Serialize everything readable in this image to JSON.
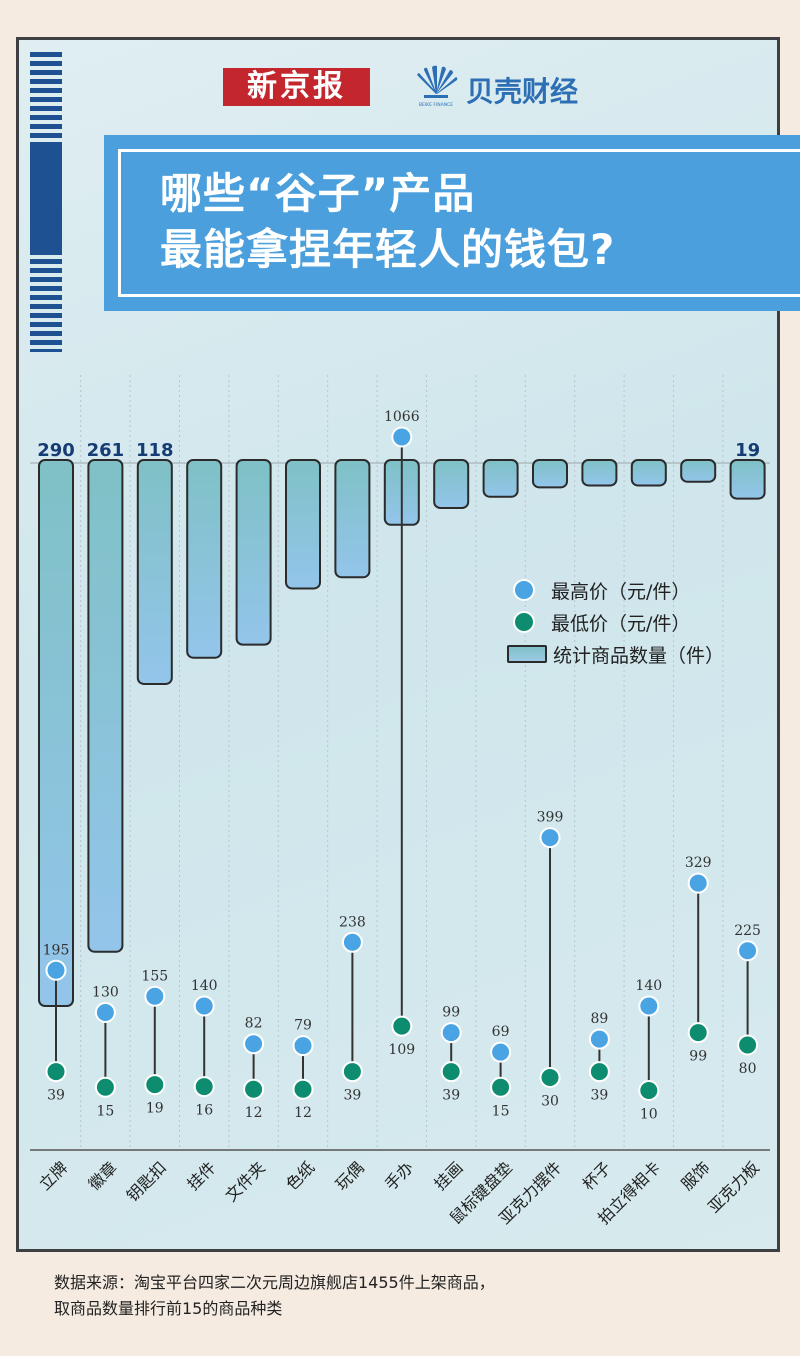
{
  "header": {
    "logo_xinjingbao": "新京报",
    "logo_beike_mark": "BEIKE FINANCE",
    "logo_beike": "贝壳财经",
    "title_line1": "哪些“谷子”产品",
    "title_line2": "最能拿捏年轻人的钱包?"
  },
  "legend": {
    "max": "最高价（元/件）",
    "min": "最低价（元/件）",
    "count": "统计商品数量（件）"
  },
  "source": {
    "line1": "数据来源：淘宝平台四家二次元周边旗舰店1455件上架商品，",
    "line2": "取商品数量排行前15的商品种类"
  },
  "colors": {
    "max_dot": "#4aa3e3",
    "min_dot": "#0d8c6f",
    "bar_top": "#7fc1c6",
    "bar_bottom": "#93c5ea",
    "count_label": "#163c74"
  },
  "chart_data": {
    "type": "bar",
    "categories": [
      "立牌",
      "徽章",
      "钥匙扣",
      "挂件",
      "文件夹",
      "色纸",
      "玩偶",
      "手办",
      "挂画",
      "鼠标键盘垫",
      "亚克力摆件",
      "杯子",
      "拍立得相卡",
      "服饰",
      "亚克力板"
    ],
    "series": [
      {
        "name": "统计商品数量（件）",
        "values": [
          290,
          261,
          118,
          104,
          97,
          67,
          61,
          33,
          24,
          18,
          13,
          12,
          12,
          10,
          19
        ]
      },
      {
        "name": "最高价（元/件）",
        "values": [
          195,
          130,
          155,
          140,
          82,
          79,
          238,
          1066,
          99,
          69,
          399,
          89,
          140,
          329,
          225
        ]
      },
      {
        "name": "最低价（元/件）",
        "values": [
          39,
          15,
          19,
          16,
          12,
          12,
          39,
          109,
          39,
          15,
          30,
          39,
          10,
          99,
          80
        ]
      }
    ],
    "count_labels": [
      {
        "category": "立牌",
        "text": "290"
      },
      {
        "category": "徽章",
        "text": "261"
      },
      {
        "category": "钥匙扣",
        "text": "118"
      },
      {
        "category": "亚克力板",
        "text": "19"
      }
    ],
    "price_axis_ylim": [
      0,
      1066
    ],
    "count_axis_ylim": [
      0,
      290
    ],
    "grid": true,
    "legend_position": "right"
  }
}
